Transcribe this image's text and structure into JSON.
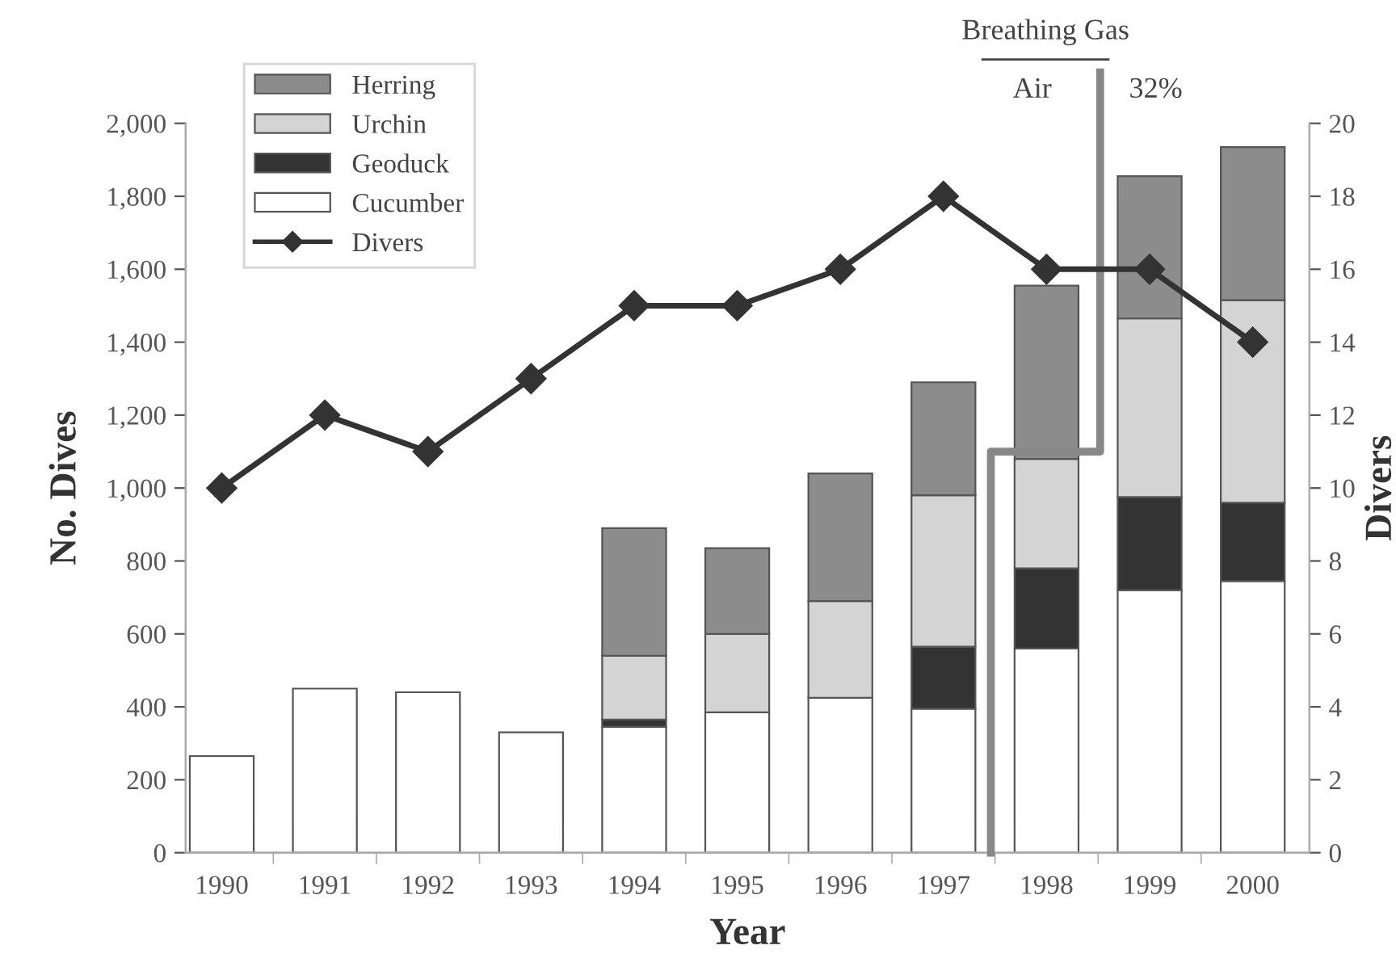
{
  "chart_data": {
    "type": "bar",
    "stacked": true,
    "xlabel": "Year",
    "ylabel": "No. Dives",
    "y2label": "Divers",
    "categories": [
      "1990",
      "1991",
      "1992",
      "1993",
      "1994",
      "1995",
      "1996",
      "1997",
      "1998",
      "1999",
      "2000"
    ],
    "series": [
      {
        "name": "Cucumber",
        "color": "#ffffff",
        "values": [
          265,
          450,
          440,
          330,
          345,
          385,
          425,
          395,
          560,
          720,
          745
        ]
      },
      {
        "name": "Geoduck",
        "color": "#333333",
        "values": [
          null,
          null,
          null,
          null,
          20,
          null,
          null,
          170,
          220,
          255,
          215
        ]
      },
      {
        "name": "Urchin",
        "color": "#d4d4d4",
        "values": [
          null,
          null,
          null,
          null,
          175,
          215,
          265,
          415,
          300,
          490,
          555
        ]
      },
      {
        "name": "Herring",
        "color": "#8c8c8c",
        "values": [
          null,
          null,
          null,
          null,
          350,
          235,
          350,
          310,
          475,
          390,
          420
        ]
      },
      {
        "name": "Divers",
        "type": "line",
        "axis": "y2",
        "color": "#333333",
        "marker": "diamond",
        "values": [
          10,
          12,
          11,
          13,
          15,
          15,
          16,
          18,
          16,
          16,
          14
        ]
      }
    ],
    "ylim": [
      0,
      2000
    ],
    "yticks": [
      0,
      200,
      400,
      600,
      800,
      {
        "value": 1000,
        "label": "1,000"
      },
      {
        "value": 1200,
        "label": "1,200"
      },
      {
        "value": 1400,
        "label": "1,400"
      },
      {
        "value": 1600,
        "label": "1,600"
      },
      {
        "value": 1800,
        "label": "1,800"
      },
      {
        "value": 2000,
        "label": "2,000"
      }
    ],
    "y2lim": [
      0,
      20
    ],
    "y2ticks": [
      0,
      2,
      4,
      6,
      8,
      10,
      12,
      14,
      16,
      18,
      20
    ],
    "legend": "top left",
    "grid": false,
    "annotations": [
      "Breathing Gas",
      "Air",
      "32%"
    ]
  }
}
